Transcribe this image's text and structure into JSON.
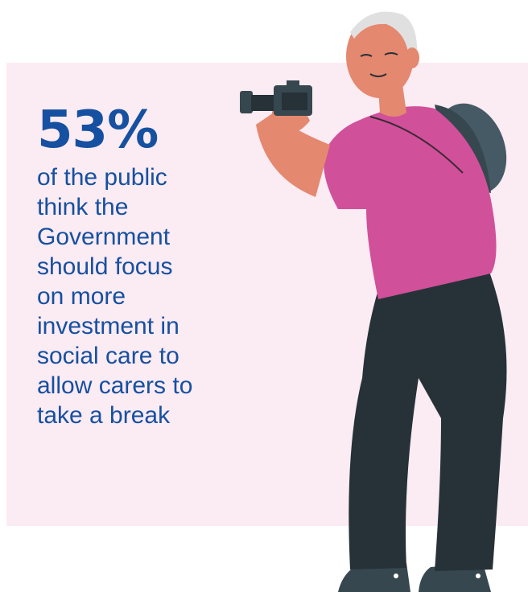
{
  "infographic": {
    "stat_value": "53%",
    "stat_lines": [
      "of the public",
      "think the",
      "Government",
      "should focus",
      "on more",
      "investment in",
      "social care to",
      "allow carers to",
      "take a break"
    ]
  },
  "colors": {
    "panel": "#fbebf3",
    "stat_text": "#1650a0",
    "shirt": "#d1509a",
    "trousers": "#263238",
    "skin": "#e48870",
    "camera": "#37474f",
    "hat": "#455a64"
  },
  "illustration": {
    "icon": "elderly-man-with-camera-illustration"
  }
}
